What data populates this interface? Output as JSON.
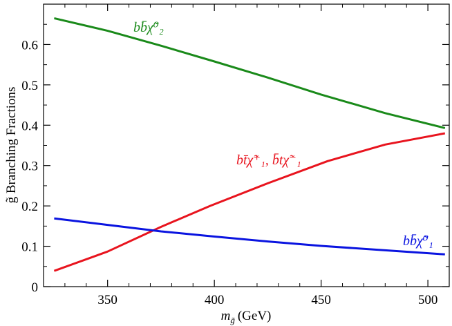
{
  "chart_data": {
    "type": "line",
    "title": "",
    "xlabel": "m_g̃ (GeV)",
    "xlabel_parts": {
      "var": "m",
      "sub": "g̃",
      "unit": "(GeV)"
    },
    "ylabel": "g̃ Branching Fractions",
    "xlim": [
      320,
      510
    ],
    "ylim": [
      0,
      0.7
    ],
    "xticks": [
      350,
      400,
      450,
      500
    ],
    "xtick_labels": [
      "350",
      "400",
      "450",
      "500"
    ],
    "yticks": [
      0,
      0.1,
      0.2,
      0.3,
      0.4,
      0.5,
      0.6
    ],
    "ytick_labels": [
      "0",
      "0.1",
      "0.2",
      "0.3",
      "0.4",
      "0.5",
      "0.6"
    ],
    "grid": false,
    "legend": "inline labels",
    "series": [
      {
        "name": "bb̄χ̃⁰₂",
        "color": "#1a8a1a",
        "x": [
          325,
          350,
          375,
          400,
          425,
          450,
          480,
          508
        ],
        "y": [
          0.665,
          0.634,
          0.597,
          0.558,
          0.518,
          0.476,
          0.43,
          0.393
        ]
      },
      {
        "name": "bt̄χ̃⁺₁, b̄tχ̃⁻₁",
        "color": "#e8141e",
        "x": [
          325,
          350,
          375,
          398,
          425,
          453,
          480,
          508
        ],
        "y": [
          0.039,
          0.087,
          0.148,
          0.2,
          0.256,
          0.311,
          0.352,
          0.38
        ]
      },
      {
        "name": "bb̄χ̃⁰₁",
        "color": "#0a14e0",
        "x": [
          325,
          350,
          375,
          400,
          425,
          450,
          480,
          508
        ],
        "y": [
          0.169,
          0.153,
          0.137,
          0.124,
          0.112,
          0.101,
          0.09,
          0.08
        ]
      }
    ]
  }
}
